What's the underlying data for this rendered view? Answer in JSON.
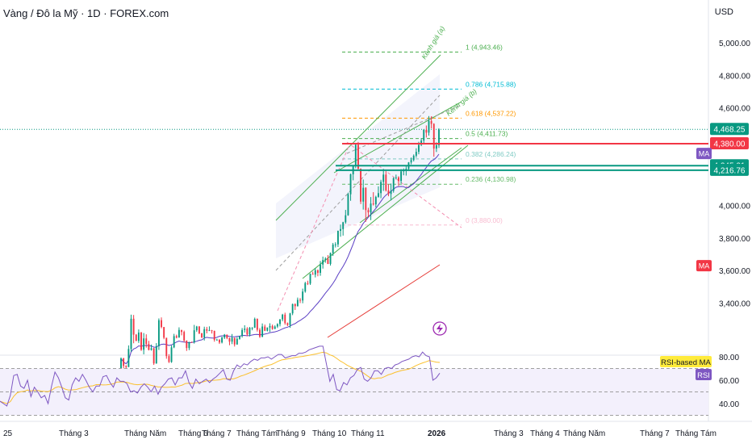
{
  "header": {
    "title": "Vàng / Đô la Mỹ · 1D · FOREX.com",
    "currency": "USD"
  },
  "chart_data": {
    "type": "candlestick",
    "price_axis": {
      "ticks": [
        "5,000.00",
        "4,800.00",
        "4,600.00",
        "4,000.00",
        "3,800.00",
        "3,600.00",
        "3,400.00"
      ],
      "ylim": [
        3100,
        5150
      ]
    },
    "time_axis": {
      "ticks": [
        "25",
        "Tháng 3",
        "Tháng Năm",
        "Tháng 6",
        "Tháng 7",
        "Tháng Tám",
        "Tháng 9",
        "Tháng 10",
        "Tháng 11",
        "2026",
        "Tháng 3",
        "Tháng 4",
        "Tháng Năm",
        "Tháng 7",
        "Tháng Tám"
      ]
    },
    "price_labels": [
      {
        "text": "4,468.25",
        "value": 4468.25,
        "color": "#089981"
      },
      {
        "text": "4,380.00",
        "value": 4380.0,
        "color": "#f23645"
      },
      {
        "text": "4,245.21",
        "value": 4245.21,
        "color": "#089981"
      },
      {
        "text": "4,216.76",
        "value": 4216.76,
        "color": "#089981"
      }
    ],
    "side_tags": [
      {
        "text": "MA",
        "value": 4320,
        "color": "#7e57c2"
      },
      {
        "text": "MA",
        "value": 3630,
        "color": "#f23645"
      }
    ],
    "fib_levels": [
      {
        "label": "1 (4,943.46)",
        "value": 4943.46,
        "color": "#4caf50"
      },
      {
        "label": "0.786 (4,715.88)",
        "value": 4715.88,
        "color": "#00bcd4"
      },
      {
        "label": "0.618 (4,537.22)",
        "value": 4537.22,
        "color": "#ff9800"
      },
      {
        "label": "0.5 (4,411.73)",
        "value": 4411.73,
        "color": "#4caf50"
      },
      {
        "label": "0.382 (4,286.24)",
        "value": 4286.24,
        "color": "#80cbc4"
      },
      {
        "label": "0.236 (4,130.98)",
        "value": 4130.98,
        "color": "#66bb6a"
      },
      {
        "label": "0 (3,880.00)",
        "value": 3880.0,
        "color": "#f8bbd0"
      }
    ],
    "channel_labels": [
      "Kênh giá (a)",
      "Kênh giá (b)"
    ],
    "series": [
      {
        "name": "",
        "ohlc": [
          [
            3000,
            3066,
            3000,
            3060
          ],
          [
            3060,
            3064,
            2999,
            3014
          ],
          [
            3014,
            3018,
            2998,
            3007
          ],
          [
            3007,
            3140,
            3007,
            3118
          ],
          [
            3118,
            3329,
            3100,
            3304
          ],
          [
            3304,
            3327,
            3153,
            3206
          ],
          [
            3206,
            3210,
            3166,
            3168
          ],
          [
            3168,
            3238,
            3155,
            3219
          ],
          [
            3219,
            3223,
            3106,
            3113
          ],
          [
            3113,
            3216,
            3085,
            3183
          ],
          [
            3183,
            3208,
            3126,
            3149
          ],
          [
            3149,
            3168,
            3109,
            3113
          ],
          [
            3113,
            3145,
            3108,
            3122
          ],
          [
            3122,
            3125,
            3020,
            3029
          ],
          [
            3029,
            3154,
            3027,
            3135
          ],
          [
            3135,
            3306,
            3112,
            3295
          ],
          [
            3295,
            3312,
            3245,
            3253
          ],
          [
            3253,
            3253,
            3178,
            3187
          ],
          [
            3187,
            3187,
            3058,
            3074
          ],
          [
            3074,
            3086,
            3032,
            3038
          ],
          [
            3038,
            3140,
            3033,
            3128
          ],
          [
            3128,
            3211,
            3123,
            3197
          ],
          [
            3197,
            3206,
            3183,
            3188
          ],
          [
            3188,
            3251,
            3188,
            3235
          ],
          [
            3235,
            3235,
            3202,
            3223
          ],
          [
            3223,
            3231,
            3159,
            3170
          ],
          [
            3170,
            3170,
            3106,
            3124
          ],
          [
            3124,
            3162,
            3111,
            3161
          ],
          [
            3161,
            3163,
            3157,
            3159
          ],
          [
            3159,
            3266,
            3151,
            3233
          ],
          [
            3233,
            3260,
            3223,
            3256
          ],
          [
            3256,
            3259,
            3209,
            3214
          ],
          [
            3214,
            3217,
            3185,
            3189
          ],
          [
            3189,
            3255,
            3170,
            3240
          ],
          [
            3240,
            3254,
            3214,
            3230
          ],
          [
            3230,
            3257,
            3230,
            3233
          ],
          [
            3233,
            3235,
            3213,
            3229
          ],
          [
            3229,
            3231,
            3163,
            3174
          ],
          [
            3174,
            3181,
            3173,
            3175
          ],
          [
            3175,
            3178,
            3149,
            3158
          ],
          [
            3158,
            3194,
            3152,
            3188
          ],
          [
            3188,
            3210,
            3179,
            3206
          ],
          [
            3206,
            3207,
            3178,
            3185
          ],
          [
            3185,
            3188,
            3141,
            3163
          ],
          [
            3163,
            3210,
            3148,
            3187
          ],
          [
            3187,
            3187,
            3133,
            3146
          ],
          [
            3146,
            3191,
            3144,
            3180
          ],
          [
            3180,
            3198,
            3175,
            3198
          ],
          [
            3198,
            3247,
            3188,
            3235
          ],
          [
            3235,
            3264,
            3219,
            3243
          ],
          [
            3243,
            3252,
            3197,
            3207
          ],
          [
            3207,
            3253,
            3195,
            3249
          ],
          [
            3249,
            3252,
            3233,
            3249
          ],
          [
            3249,
            3311,
            3247,
            3303
          ],
          [
            3303,
            3306,
            3225,
            3236
          ],
          [
            3236,
            3247,
            3186,
            3193
          ],
          [
            3193,
            3275,
            3190,
            3256
          ],
          [
            3256,
            3268,
            3228,
            3230
          ],
          [
            3230,
            3250,
            3226,
            3250
          ],
          [
            3250,
            3276,
            3223,
            3259
          ],
          [
            3259,
            3268,
            3236,
            3241
          ],
          [
            3241,
            3263,
            3240,
            3256
          ],
          [
            3256,
            3276,
            3247,
            3271
          ],
          [
            3271,
            3302,
            3257,
            3300
          ],
          [
            3300,
            3334,
            3288,
            3329
          ],
          [
            3329,
            3341,
            3267,
            3277
          ],
          [
            3277,
            3281,
            3259,
            3265
          ],
          [
            3265,
            3340,
            3248,
            3337
          ],
          [
            3337,
            3397,
            3326,
            3394
          ],
          [
            3394,
            3398,
            3358,
            3381
          ],
          [
            3381,
            3434,
            3379,
            3420
          ],
          [
            3420,
            3431,
            3400,
            3416
          ],
          [
            3416,
            3489,
            3399,
            3471
          ],
          [
            3471,
            3531,
            3464,
            3523
          ],
          [
            3523,
            3538,
            3511,
            3520
          ],
          [
            3520,
            3582,
            3512,
            3580
          ],
          [
            3580,
            3593,
            3575,
            3575
          ],
          [
            3575,
            3615,
            3558,
            3602
          ],
          [
            3602,
            3607,
            3565,
            3586
          ],
          [
            3586,
            3659,
            3568,
            3637
          ],
          [
            3637,
            3686,
            3612,
            3665
          ],
          [
            3665,
            3682,
            3648,
            3673
          ],
          [
            3673,
            3695,
            3640,
            3641
          ],
          [
            3641,
            3711,
            3631,
            3708
          ],
          [
            3708,
            3770,
            3690,
            3760
          ],
          [
            3760,
            3774,
            3742,
            3761
          ],
          [
            3761,
            3846,
            3745,
            3844
          ],
          [
            3844,
            3883,
            3808,
            3855
          ],
          [
            3855,
            3900,
            3815,
            3897
          ],
          [
            3897,
            3973,
            3888,
            3940
          ],
          [
            3940,
            4079,
            3937,
            4069
          ],
          [
            4069,
            4196,
            4029,
            4192
          ],
          [
            4192,
            4249,
            4155,
            4242
          ],
          [
            4242,
            4381,
            4229,
            4374
          ],
          [
            4374,
            4391,
            4222,
            4226
          ],
          [
            4226,
            4228,
            4009,
            4024
          ],
          [
            4024,
            4160,
            3975,
            4109
          ],
          [
            4109,
            4112,
            3900,
            3972
          ],
          [
            3972,
            3986,
            3929,
            3958
          ],
          [
            3958,
            4052,
            3910,
            4012
          ],
          [
            4012,
            4082,
            4000,
            4007
          ],
          [
            4007,
            4060,
            3988,
            4053
          ],
          [
            4053,
            4118,
            4048,
            4076
          ],
          [
            4076,
            4158,
            4045,
            4145
          ],
          [
            4145,
            4225,
            4090,
            4190
          ],
          [
            4190,
            4211,
            4086,
            4093
          ],
          [
            4093,
            4131,
            4057,
            4071
          ],
          [
            4071,
            4135,
            4031,
            4091
          ],
          [
            4091,
            4174,
            4079,
            4168
          ],
          [
            4168,
            4190,
            4160,
            4173
          ],
          [
            4173,
            4180,
            4120,
            4151
          ],
          [
            4151,
            4224,
            4135,
            4210
          ],
          [
            4210,
            4228,
            4186,
            4218
          ],
          [
            4218,
            4245,
            4184,
            4226
          ],
          [
            4226,
            4267,
            4216,
            4265
          ],
          [
            4265,
            4295,
            4253,
            4280
          ],
          [
            4280,
            4314,
            4271,
            4306
          ],
          [
            4306,
            4352,
            4294,
            4330
          ],
          [
            4330,
            4392,
            4315,
            4373
          ],
          [
            4373,
            4414,
            4365,
            4399
          ],
          [
            4399,
            4469,
            4385,
            4465
          ],
          [
            4465,
            4492,
            4418,
            4448
          ],
          [
            4448,
            4550,
            4430,
            4520
          ],
          [
            4520,
            4549,
            4474,
            4502
          ],
          [
            4502,
            4506,
            4300,
            4350
          ],
          [
            4350,
            4388,
            4329,
            4371
          ],
          [
            4371,
            4475,
            4354,
            4468.25
          ]
        ]
      }
    ],
    "rsi": {
      "axis_ticks": [
        "80.00",
        "60.00",
        "40.00"
      ],
      "ylim": [
        30,
        90
      ],
      "levels": [
        70,
        50
      ],
      "tags": [
        {
          "text": "RSI-based MA",
          "color": "#ffeb3b"
        },
        {
          "text": "RSI",
          "color": "#7e57c2"
        }
      ],
      "values": [
        42,
        40,
        38,
        47,
        64,
        65,
        55,
        53,
        60,
        46,
        54,
        50,
        45,
        47,
        40,
        55,
        67,
        62,
        54,
        45,
        43,
        56,
        62,
        59,
        65,
        60,
        54,
        50,
        55,
        55,
        63,
        64,
        58,
        54,
        62,
        59,
        59,
        57,
        50,
        51,
        49,
        54,
        57,
        54,
        50,
        55,
        48,
        54,
        57,
        61,
        62,
        56,
        62,
        62,
        68,
        58,
        53,
        61,
        57,
        59,
        61,
        58,
        61,
        63,
        66,
        69,
        61,
        60,
        68,
        73,
        71,
        74,
        73,
        76,
        78,
        77,
        79,
        79,
        80,
        78,
        80,
        82,
        82,
        79,
        80,
        81,
        81,
        83,
        83,
        84,
        86,
        87,
        88,
        89,
        89,
        74,
        59,
        65,
        52,
        51,
        58,
        56,
        62,
        64,
        69,
        71,
        61,
        59,
        62,
        68,
        68,
        65,
        70,
        71,
        70,
        73,
        74,
        76,
        77,
        78,
        80,
        81,
        80,
        84,
        81,
        80,
        60,
        62,
        66
      ]
    }
  }
}
